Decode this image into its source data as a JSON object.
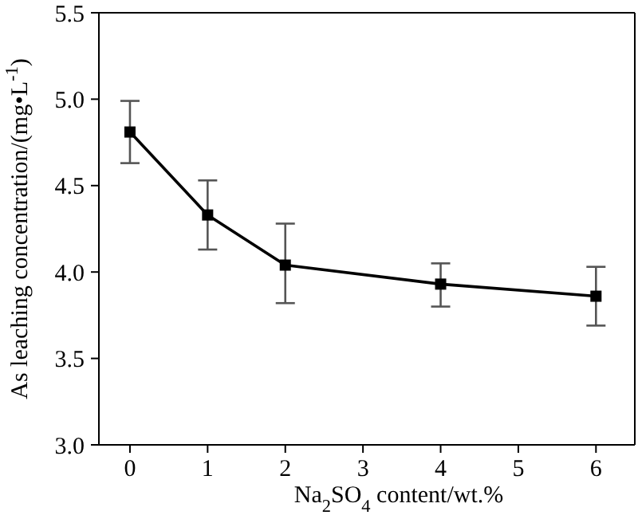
{
  "chart_data": {
    "type": "line",
    "xlabel": "Na$_{2}$SO$_{4}$ content/wt.%",
    "ylabel": "As leaching concentration/(mg•L$^{-1}$)",
    "x": [
      0,
      1,
      2,
      4,
      6
    ],
    "series": [
      {
        "color": "#000000",
        "values": [
          4.81,
          4.33,
          4.04,
          3.93,
          3.86
        ],
        "errors": [
          [
            4.63,
            4.99
          ],
          [
            4.13,
            4.53
          ],
          [
            3.82,
            4.28
          ],
          [
            3.8,
            4.05
          ],
          [
            3.69,
            4.03
          ]
        ]
      }
    ],
    "xlim": [
      -0.4,
      6.5
    ],
    "xticks": [
      0,
      1,
      2,
      3,
      4,
      5,
      6
    ],
    "ylim": [
      3.0,
      5.5
    ],
    "yticks": [
      {
        "value": 3.0,
        "label": "3.0"
      },
      {
        "value": 3.5,
        "label": "3.5"
      },
      {
        "value": 4.0,
        "label": "4.0"
      },
      {
        "value": 4.5,
        "label": "4.5"
      },
      {
        "value": 5.0,
        "label": "5.0"
      },
      {
        "value": 5.5,
        "label": "5.5"
      }
    ],
    "grid": false,
    "legend": false,
    "marker": "square",
    "line_style": "solid"
  }
}
